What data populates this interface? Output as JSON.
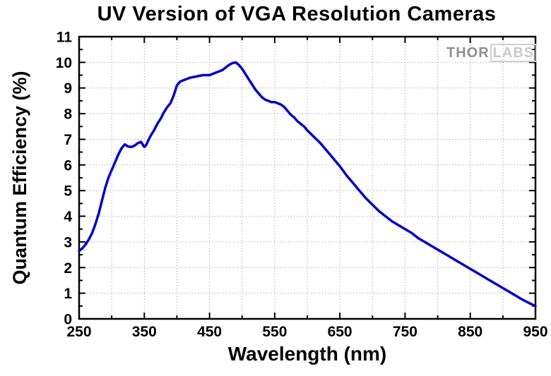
{
  "watermark": {
    "part1": "THOR",
    "part2": "LABS"
  },
  "chart_data": {
    "type": "line",
    "title": "UV Version of VGA Resolution Cameras",
    "xlabel": "Wavelength (nm)",
    "ylabel": "Quantum Efficiency (%)",
    "xlim": [
      250,
      950
    ],
    "ylim": [
      0,
      11
    ],
    "x_major_step": 100,
    "x_minor_step": 50,
    "y_major_step": 1,
    "y_minor_step": 0.5,
    "grid": true,
    "legend": "none",
    "line_color": "#0000CC",
    "series": [
      {
        "name": "Quantum Efficiency",
        "points": [
          [
            250,
            2.65
          ],
          [
            255,
            2.75
          ],
          [
            260,
            2.9
          ],
          [
            265,
            3.1
          ],
          [
            270,
            3.35
          ],
          [
            275,
            3.7
          ],
          [
            280,
            4.1
          ],
          [
            285,
            4.6
          ],
          [
            290,
            5.1
          ],
          [
            295,
            5.5
          ],
          [
            300,
            5.8
          ],
          [
            305,
            6.1
          ],
          [
            310,
            6.4
          ],
          [
            315,
            6.65
          ],
          [
            320,
            6.8
          ],
          [
            325,
            6.72
          ],
          [
            330,
            6.7
          ],
          [
            335,
            6.75
          ],
          [
            340,
            6.85
          ],
          [
            345,
            6.9
          ],
          [
            350,
            6.7
          ],
          [
            353,
            6.78
          ],
          [
            355,
            6.9
          ],
          [
            360,
            7.15
          ],
          [
            365,
            7.35
          ],
          [
            370,
            7.6
          ],
          [
            375,
            7.8
          ],
          [
            380,
            8.05
          ],
          [
            385,
            8.25
          ],
          [
            390,
            8.4
          ],
          [
            395,
            8.7
          ],
          [
            400,
            9.1
          ],
          [
            405,
            9.25
          ],
          [
            410,
            9.3
          ],
          [
            415,
            9.35
          ],
          [
            420,
            9.4
          ],
          [
            430,
            9.45
          ],
          [
            440,
            9.5
          ],
          [
            450,
            9.5
          ],
          [
            455,
            9.55
          ],
          [
            460,
            9.6
          ],
          [
            465,
            9.65
          ],
          [
            470,
            9.7
          ],
          [
            475,
            9.8
          ],
          [
            480,
            9.9
          ],
          [
            485,
            9.97
          ],
          [
            490,
            10.0
          ],
          [
            495,
            9.9
          ],
          [
            500,
            9.75
          ],
          [
            505,
            9.55
          ],
          [
            510,
            9.35
          ],
          [
            515,
            9.15
          ],
          [
            520,
            8.95
          ],
          [
            525,
            8.8
          ],
          [
            530,
            8.65
          ],
          [
            535,
            8.55
          ],
          [
            540,
            8.5
          ],
          [
            545,
            8.45
          ],
          [
            550,
            8.45
          ],
          [
            555,
            8.4
          ],
          [
            560,
            8.35
          ],
          [
            565,
            8.25
          ],
          [
            570,
            8.1
          ],
          [
            575,
            7.95
          ],
          [
            580,
            7.85
          ],
          [
            585,
            7.7
          ],
          [
            590,
            7.6
          ],
          [
            595,
            7.5
          ],
          [
            600,
            7.35
          ],
          [
            610,
            7.1
          ],
          [
            620,
            6.85
          ],
          [
            630,
            6.55
          ],
          [
            640,
            6.25
          ],
          [
            650,
            5.95
          ],
          [
            660,
            5.6
          ],
          [
            670,
            5.3
          ],
          [
            680,
            5.0
          ],
          [
            690,
            4.7
          ],
          [
            700,
            4.45
          ],
          [
            710,
            4.2
          ],
          [
            720,
            4.0
          ],
          [
            730,
            3.8
          ],
          [
            740,
            3.65
          ],
          [
            750,
            3.5
          ],
          [
            760,
            3.35
          ],
          [
            770,
            3.15
          ],
          [
            780,
            3.0
          ],
          [
            790,
            2.85
          ],
          [
            800,
            2.7
          ],
          [
            810,
            2.55
          ],
          [
            820,
            2.4
          ],
          [
            830,
            2.25
          ],
          [
            840,
            2.1
          ],
          [
            850,
            1.95
          ],
          [
            860,
            1.8
          ],
          [
            870,
            1.65
          ],
          [
            880,
            1.5
          ],
          [
            890,
            1.35
          ],
          [
            900,
            1.2
          ],
          [
            910,
            1.05
          ],
          [
            920,
            0.9
          ],
          [
            930,
            0.75
          ],
          [
            940,
            0.62
          ],
          [
            950,
            0.5
          ]
        ]
      }
    ]
  }
}
